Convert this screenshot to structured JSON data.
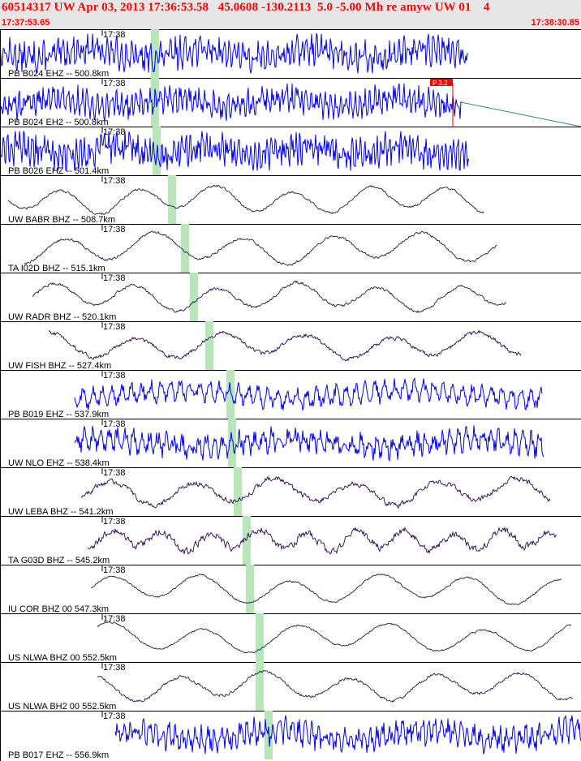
{
  "header": {
    "title": "60514317 UW Apr 03, 2013 17:36:53.58   45.0608 -130.2113  5.0 -5.00 Mh re amyw UW 01    4",
    "start_time": "17:37:53.65",
    "end_time": "17:38:30.85"
  },
  "colors": {
    "header_text": "#ff0000",
    "header_bg": "#e6e6e6",
    "trace_blue": "#0000ee",
    "trace_dark": "#1a1a50",
    "trace_purple": "#300050",
    "arrival_band": "#b8e6b8",
    "pick_flag": "#ff0000"
  },
  "minute_tick": "17:38",
  "pick_label": "P 3.2",
  "traces": [
    {
      "label": "PB B024 EHZ -- 500.8km",
      "style": "blue",
      "start": 0,
      "end": 576,
      "arrival": 191,
      "amp": 18,
      "period": 6,
      "noise": 0.7,
      "clipped": false
    },
    {
      "label": "PB B024 EH2 -- 500.8km",
      "style": "blue",
      "start": 0,
      "end": 578,
      "arrival": 191,
      "amp": 17,
      "period": 6,
      "noise": 0.7,
      "clipped": true
    },
    {
      "label": "PB B026 EHZ -- 501.4km",
      "style": "blue",
      "start": 0,
      "end": 578,
      "arrival": 193,
      "amp": 18,
      "period": 5,
      "noise": 0.8,
      "clipped": false
    },
    {
      "label": "UW BABR BHZ -- 508.7km",
      "style": "dark",
      "start": 10,
      "end": 596,
      "arrival": 212,
      "amp": 18,
      "period": 95,
      "noise": 0.08,
      "clipped": false
    },
    {
      "label": "TA I02D BHZ -- 515.1km",
      "style": "dark",
      "start": 30,
      "end": 612,
      "arrival": 228,
      "amp": 20,
      "period": 110,
      "noise": 0.08,
      "clipped": false
    },
    {
      "label": "UW RADR BHZ -- 520.1km",
      "style": "dark",
      "start": 40,
      "end": 624,
      "arrival": 239,
      "amp": 18,
      "period": 100,
      "noise": 0.1,
      "clipped": false
    },
    {
      "label": "UW FISH BHZ -- 527.4km",
      "style": "purple",
      "start": 60,
      "end": 642,
      "arrival": 258,
      "amp": 17,
      "period": 105,
      "noise": 0.15,
      "clipped": false
    },
    {
      "label": "PB B019 EHZ -- 537.9km",
      "style": "blue",
      "start": 92,
      "end": 668,
      "arrival": 284,
      "amp": 17,
      "period": 12,
      "noise": 0.4,
      "clipped": false
    },
    {
      "label": "UW NLO EHZ -- 538.4km",
      "style": "blue",
      "start": 92,
      "end": 670,
      "arrival": 286,
      "amp": 16,
      "period": 10,
      "noise": 0.6,
      "clipped": false
    },
    {
      "label": "UW LEBA BHZ -- 541.2km",
      "style": "purple",
      "start": 100,
      "end": 678,
      "arrival": 293,
      "amp": 17,
      "period": 100,
      "noise": 0.2,
      "clipped": false
    },
    {
      "label": "TA G03D BHZ -- 545.2km",
      "style": "purple",
      "start": 108,
      "end": 686,
      "arrival": 304,
      "amp": 14,
      "period": 60,
      "noise": 0.35,
      "clipped": false
    },
    {
      "label": "IU COR BHZ 00 547.3km",
      "style": "dark",
      "start": 112,
      "end": 692,
      "arrival": 308,
      "amp": 19,
      "period": 110,
      "noise": 0.06,
      "clipped": false
    },
    {
      "label": "US NLWA BHZ 00 552.5km",
      "style": "dark",
      "start": 120,
      "end": 704,
      "arrival": 320,
      "amp": 19,
      "period": 115,
      "noise": 0.06,
      "clipped": false
    },
    {
      "label": "US NLWA BH2 00 552.5km",
      "style": "dark",
      "start": 120,
      "end": 706,
      "arrival": 320,
      "amp": 18,
      "period": 105,
      "noise": 0.1,
      "clipped": false
    },
    {
      "label": "PB B017 EHZ -- 556.9km",
      "style": "blue",
      "start": 142,
      "end": 716,
      "arrival": 331,
      "amp": 18,
      "period": 8,
      "noise": 0.6,
      "clipped": false
    }
  ]
}
